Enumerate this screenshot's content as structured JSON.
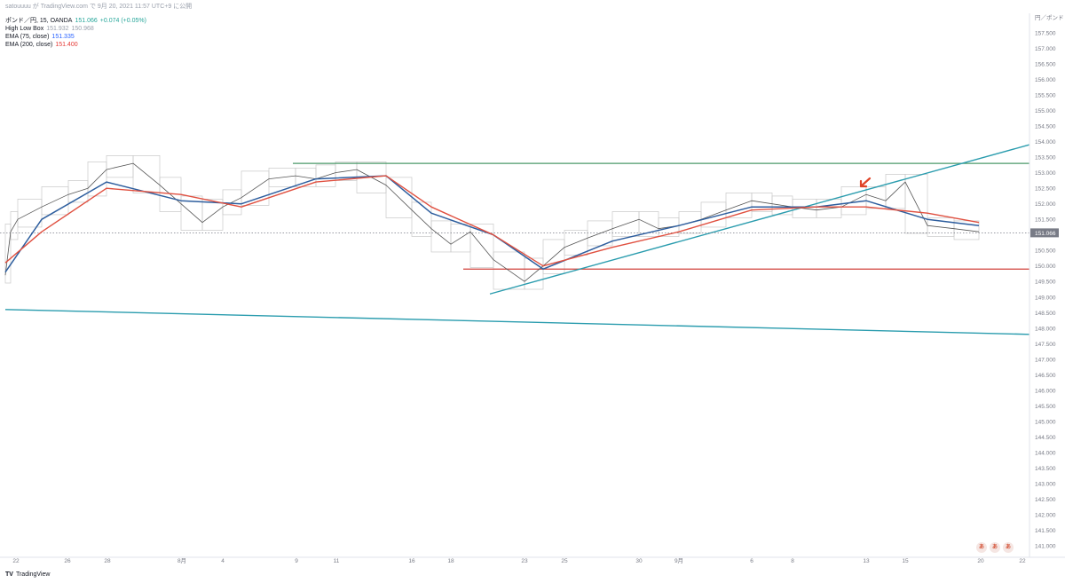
{
  "header": {
    "attribution": "satouuuu が TradingView.com で 9月 20, 2021 11:57 UTC+9 に公開",
    "symbol": "ポンド／円, 15, OANDA",
    "last": "151.066",
    "change": "+0.074 (+0.05%)",
    "indicators": [
      {
        "name": "High Low Box",
        "v1": "151.932",
        "v2": "150.968"
      },
      {
        "name": "EMA (75, close)",
        "v1": "151.335"
      },
      {
        "name": "EMA (200, close)",
        "v1": "151.400"
      }
    ]
  },
  "price_axis": {
    "top_label": "円／ポンド",
    "ticks": [
      "157.500",
      "157.000",
      "156.500",
      "156.000",
      "155.500",
      "155.000",
      "154.500",
      "154.000",
      "153.500",
      "153.000",
      "152.500",
      "152.000",
      "151.500",
      "151.000",
      "150.500",
      "150.000",
      "149.500",
      "149.000",
      "148.500",
      "148.000",
      "147.500",
      "147.000",
      "146.500",
      "146.000",
      "145.500",
      "145.000",
      "144.500",
      "144.000",
      "143.500",
      "143.000",
      "142.500",
      "142.000",
      "141.500",
      "141.000"
    ],
    "current_price_label": "151.066"
  },
  "time_axis": {
    "labels": [
      "22",
      "26",
      "28",
      "8月",
      "4",
      "9",
      "11",
      "16",
      "18",
      "23",
      "25",
      "30",
      "9月",
      "6",
      "8",
      "13",
      "15",
      "20",
      "22"
    ]
  },
  "footer": {
    "brand": "TradingView",
    "buttons": [
      "あ",
      "あ",
      "あ"
    ]
  },
  "colors": {
    "price": "#555555",
    "ema75": "#2e5e9e",
    "ema200": "#e05040",
    "green_line": "#4c9a6a",
    "red_line": "#d0433c",
    "teal_line": "#2a9cae",
    "box": "#c8c8c8"
  },
  "chart_data": {
    "type": "line",
    "title": "ポンド／円, 15, OANDA",
    "xlabel": "",
    "ylabel": "",
    "ylim": [
      141.0,
      157.5
    ],
    "x_ticks": [
      "22",
      "26",
      "28",
      "8月",
      "4",
      "9",
      "11",
      "16",
      "18",
      "23",
      "25",
      "30",
      "9月",
      "6",
      "8",
      "13",
      "15",
      "20",
      "22"
    ],
    "series": [
      {
        "name": "ポンド／円",
        "x": [
          "7/20",
          "7/21",
          "7/22",
          "7/23",
          "7/26",
          "7/27",
          "7/28",
          "7/29",
          "7/30",
          "8/2",
          "8/3",
          "8/4",
          "8/5",
          "8/6",
          "8/9",
          "8/10",
          "8/11",
          "8/12",
          "8/13",
          "8/16",
          "8/17",
          "8/18",
          "8/19",
          "8/20",
          "8/23",
          "8/24",
          "8/25",
          "8/26",
          "8/27",
          "8/30",
          "8/31",
          "9/1",
          "9/2",
          "9/3",
          "9/6",
          "9/7",
          "9/8",
          "9/9",
          "9/10",
          "9/13",
          "9/14",
          "9/15",
          "9/16",
          "9/17",
          "9/20"
        ],
        "y": [
          149.7,
          151.1,
          151.5,
          151.9,
          152.3,
          152.5,
          153.1,
          153.3,
          152.6,
          152.0,
          151.4,
          151.9,
          152.2,
          152.8,
          152.9,
          152.8,
          153.0,
          153.1,
          152.6,
          151.8,
          151.2,
          150.7,
          151.1,
          150.2,
          149.5,
          150.0,
          150.6,
          150.9,
          151.2,
          151.5,
          151.2,
          151.3,
          151.5,
          151.8,
          152.1,
          152.0,
          151.9,
          151.8,
          151.9,
          152.3,
          152.1,
          152.7,
          151.3,
          151.2,
          151.1
        ]
      },
      {
        "name": "EMA (75, close)",
        "x": [
          "7/20",
          "7/23",
          "7/28",
          "8/2",
          "8/5",
          "8/10",
          "8/13",
          "8/17",
          "8/20",
          "8/24",
          "8/27",
          "9/1",
          "9/6",
          "9/9",
          "9/13",
          "9/16",
          "9/20"
        ],
        "y": [
          149.8,
          151.5,
          152.7,
          152.1,
          152.0,
          152.8,
          152.9,
          151.7,
          151.0,
          149.9,
          150.8,
          151.3,
          151.9,
          151.9,
          152.1,
          151.5,
          151.3
        ]
      },
      {
        "name": "EMA (200, close)",
        "x": [
          "7/20",
          "7/23",
          "7/28",
          "8/2",
          "8/5",
          "8/10",
          "8/13",
          "8/17",
          "8/20",
          "8/24",
          "8/27",
          "9/1",
          "9/6",
          "9/9",
          "9/13",
          "9/16",
          "9/20"
        ],
        "y": [
          150.1,
          151.1,
          152.5,
          152.3,
          151.9,
          152.7,
          152.9,
          151.9,
          151.0,
          150.0,
          150.6,
          151.1,
          151.8,
          151.9,
          151.9,
          151.7,
          151.4
        ]
      }
    ],
    "horizontal_lines": [
      {
        "name": "resistance",
        "y": 153.3
      },
      {
        "name": "support",
        "y": 149.9
      }
    ],
    "trend_lines": [
      {
        "name": "rising-trend",
        "from": [
          "8/20",
          149.1
        ],
        "to": [
          "9/22",
          153.9
        ]
      },
      {
        "name": "falling-trend",
        "from": [
          "7/20",
          148.6
        ],
        "to": [
          "9/22",
          147.8
        ]
      }
    ],
    "current_price": 151.066,
    "grid": false
  }
}
